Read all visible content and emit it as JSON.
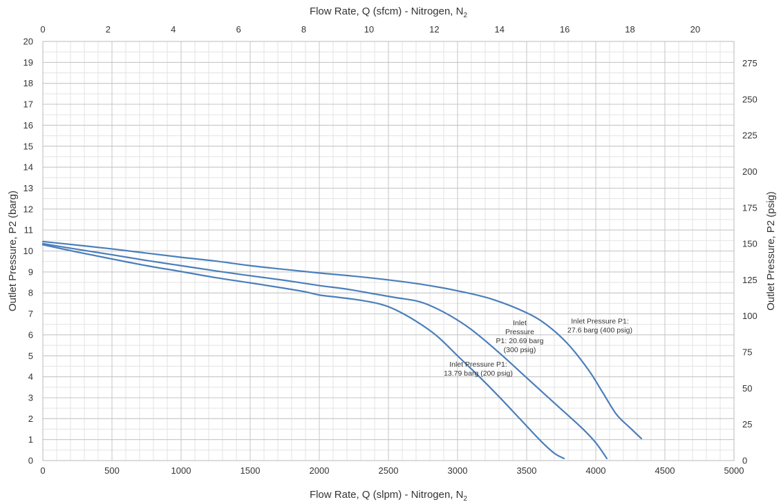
{
  "chart_data": {
    "type": "line",
    "x_bottom": {
      "label": "Flow Rate, Q (slpm) - Nitrogen, N",
      "label_sub": "2",
      "min": 0,
      "max": 5000,
      "major_step": 500,
      "ticks": [
        "0",
        "500",
        "1000",
        "1500",
        "2000",
        "2500",
        "3000",
        "3500",
        "4000",
        "4500",
        "5000"
      ]
    },
    "x_top": {
      "label": "Flow Rate, Q (sfcm) - Nitrogen, N",
      "label_sub": "2",
      "min": 0,
      "max": 21.189,
      "major_step": 2,
      "ticks": [
        "0",
        "2",
        "4",
        "6",
        "8",
        "10",
        "12",
        "14",
        "16",
        "18",
        "20"
      ]
    },
    "y_left": {
      "label": "Outlet Pressure, P2 (barg)",
      "min": 0,
      "max": 20,
      "major_step": 1,
      "ticks": [
        "0",
        "1",
        "2",
        "3",
        "4",
        "5",
        "6",
        "7",
        "8",
        "9",
        "10",
        "11",
        "12",
        "13",
        "14",
        "15",
        "16",
        "17",
        "18",
        "19",
        "20"
      ]
    },
    "y_right": {
      "label": "Outlet Pressure, P2 (psig)",
      "min": 0,
      "max": 290.076,
      "major_step": 25,
      "ticks": [
        "0",
        "25",
        "50",
        "75",
        "100",
        "125",
        "150",
        "175",
        "200",
        "225",
        "250",
        "275"
      ]
    },
    "grid": true,
    "minor_grid_x_step": 100,
    "minor_grid_y_step": 0.5,
    "series": [
      {
        "color": "#4a7ebb",
        "x": [
          0,
          250,
          500,
          750,
          1000,
          1250,
          1500,
          1750,
          1900,
          2000,
          2150,
          2300,
          2450,
          2550,
          2700,
          2850,
          3000,
          3150,
          3300,
          3450,
          3600,
          3700,
          3770
        ],
        "y": [
          10.3,
          9.95,
          9.62,
          9.3,
          9.02,
          8.73,
          8.48,
          8.22,
          8.05,
          7.9,
          7.78,
          7.65,
          7.45,
          7.2,
          6.65,
          5.95,
          5.0,
          4.05,
          3.05,
          2.0,
          0.95,
          0.35,
          0.1
        ]
      },
      {
        "color": "#4a7ebb",
        "x": [
          0,
          250,
          500,
          750,
          1000,
          1250,
          1500,
          1750,
          2000,
          2200,
          2400,
          2550,
          2700,
          2800,
          2950,
          3100,
          3300,
          3500,
          3700,
          3900,
          4000,
          4080
        ],
        "y": [
          10.35,
          10.08,
          9.82,
          9.55,
          9.3,
          9.05,
          8.82,
          8.6,
          8.35,
          8.18,
          7.95,
          7.78,
          7.62,
          7.4,
          6.9,
          6.25,
          5.15,
          3.95,
          2.75,
          1.55,
          0.85,
          0.1
        ]
      },
      {
        "color": "#4a7ebb",
        "x": [
          0,
          250,
          500,
          750,
          1000,
          1250,
          1500,
          1750,
          2000,
          2250,
          2500,
          2750,
          3000,
          3250,
          3500,
          3650,
          3800,
          3950,
          4050,
          4150,
          4250,
          4330
        ],
        "y": [
          10.45,
          10.28,
          10.1,
          9.9,
          9.7,
          9.52,
          9.3,
          9.12,
          8.95,
          8.8,
          8.62,
          8.4,
          8.1,
          7.7,
          7.05,
          6.45,
          5.55,
          4.3,
          3.25,
          2.2,
          1.55,
          1.05
        ]
      }
    ],
    "annotations": [
      {
        "anchor_x": 3150,
        "anchor_y": 4.4,
        "lines": [
          "Inlet Pressure P1:",
          "13.79 barg (200 psig)"
        ]
      },
      {
        "anchor_x": 3450,
        "anchor_y": 5.95,
        "lines": [
          "Inlet",
          "Pressure",
          "P1: 20.69 barg",
          "(300 psig)"
        ]
      },
      {
        "anchor_x": 4030,
        "anchor_y": 6.45,
        "lines": [
          "Inlet Pressure P1:",
          "27.6 barg (400 psig)"
        ]
      }
    ]
  }
}
